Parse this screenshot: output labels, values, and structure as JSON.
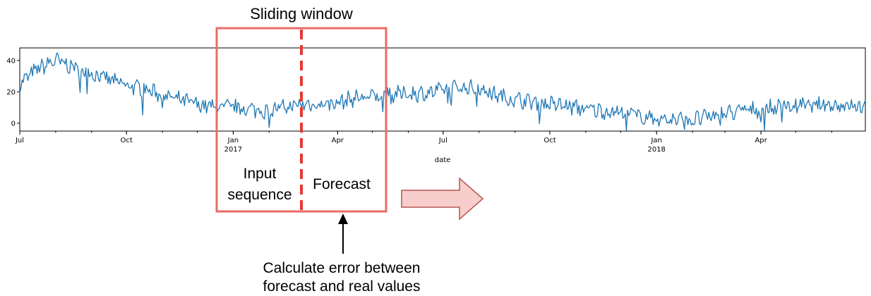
{
  "diagram": {
    "window_label": "Sliding window",
    "input_label_line1": "Input",
    "input_label_line2": "sequence",
    "forecast_label": "Forecast",
    "error_label_line1": "Calculate error between",
    "error_label_line2": "forecast and real values",
    "window_color": "#ea6b66",
    "arrow_fill": "#f8cecc",
    "arrow_stroke": "#b85450"
  },
  "chart_data": {
    "type": "line",
    "xlabel": "date",
    "ylabel": "",
    "x_start": "2016-07-01",
    "x_end": "2018-06-30",
    "ylim": [
      -5,
      48
    ],
    "y_ticks": [
      0,
      20,
      40
    ],
    "x_ticks": [
      {
        "date": "2016-07-01",
        "label": "Jul",
        "sublabel": ""
      },
      {
        "date": "2016-10-01",
        "label": "Oct",
        "sublabel": ""
      },
      {
        "date": "2017-01-01",
        "label": "Jan",
        "sublabel": "2017"
      },
      {
        "date": "2017-04-01",
        "label": "Apr",
        "sublabel": ""
      },
      {
        "date": "2017-07-01",
        "label": "Jul",
        "sublabel": ""
      },
      {
        "date": "2017-10-01",
        "label": "Oct",
        "sublabel": ""
      },
      {
        "date": "2018-01-01",
        "label": "Jan",
        "sublabel": "2018"
      },
      {
        "date": "2018-04-01",
        "label": "Apr",
        "sublabel": ""
      }
    ],
    "line_color": "#1f77b4",
    "series": [
      {
        "x": [
          "2016-07-01",
          "2016-07-15",
          "2016-08-01",
          "2016-08-15",
          "2016-09-01",
          "2016-09-15",
          "2016-10-01",
          "2016-10-15",
          "2016-11-01",
          "2016-11-15",
          "2016-12-01",
          "2016-12-15",
          "2017-01-01",
          "2017-01-15",
          "2017-02-01",
          "2017-02-15",
          "2017-03-01",
          "2017-03-15",
          "2017-04-01",
          "2017-04-15",
          "2017-05-01",
          "2017-05-15",
          "2017-06-01",
          "2017-06-15",
          "2017-07-01",
          "2017-07-15",
          "2017-08-01",
          "2017-08-15",
          "2017-09-01",
          "2017-09-15",
          "2017-10-01",
          "2017-10-15",
          "2017-11-01",
          "2017-11-15",
          "2017-12-01",
          "2017-12-15",
          "2018-01-01",
          "2018-01-15",
          "2018-02-01",
          "2018-02-15",
          "2018-03-01",
          "2018-03-15",
          "2018-04-01",
          "2018-04-15",
          "2018-05-01",
          "2018-05-15",
          "2018-06-01",
          "2018-06-15",
          "2018-06-30"
        ],
        "y": [
          25,
          34,
          40,
          36,
          32,
          28,
          24,
          22,
          18,
          15,
          12,
          10,
          10,
          9,
          8,
          10,
          12,
          12,
          13,
          16,
          17,
          18,
          19,
          19,
          21,
          23,
          22,
          18,
          15,
          14,
          12,
          11,
          9,
          8,
          7,
          5,
          3,
          2,
          2,
          4,
          6,
          8,
          9,
          10,
          11,
          11,
          12,
          11,
          10
        ]
      }
    ]
  }
}
